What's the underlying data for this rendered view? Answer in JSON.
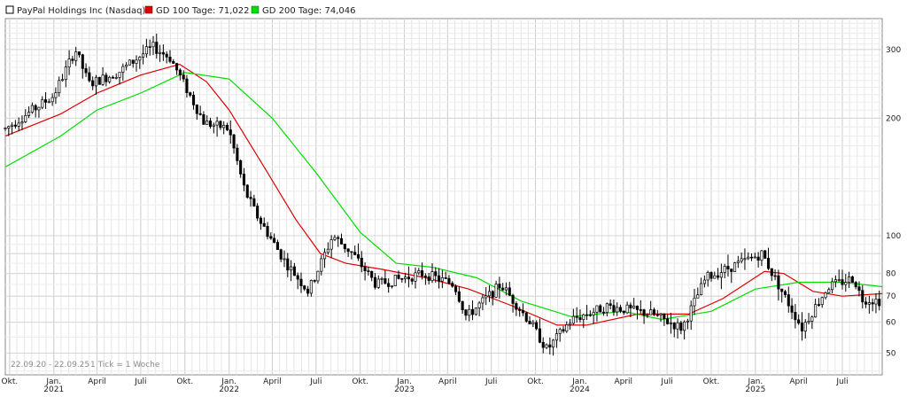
{
  "legend": [
    {
      "label": "PayPal Holdings Inc (Nasdaq)",
      "color": "#000000"
    },
    {
      "label": "GD 100 Tage: 71,022",
      "color": "#e00000"
    },
    {
      "label": "GD 200 Tage: 74,046",
      "color": "#00dd00"
    }
  ],
  "footer": {
    "range": "22.09.20 - 22.09.25",
    "tick_info": "1 Tick = 1 Woche"
  },
  "chart_data": {
    "type": "candlestick",
    "y_scale": "log",
    "ylim": [
      44,
      360
    ],
    "y_ticks": [
      50,
      60,
      70,
      80,
      90,
      100,
      200,
      300
    ],
    "y_tick_labels": [
      "50",
      "60",
      "70",
      "80",
      "",
      "100",
      "200",
      "300"
    ],
    "x_tick_labels": [
      {
        "date": "2020-10-01",
        "label": "Okt."
      },
      {
        "date": "2021-01-01",
        "label": "Jan.",
        "year": "2021"
      },
      {
        "date": "2021-04-01",
        "label": "April"
      },
      {
        "date": "2021-07-01",
        "label": "Juli"
      },
      {
        "date": "2021-10-01",
        "label": "Okt."
      },
      {
        "date": "2022-01-01",
        "label": "Jan.",
        "year": "2022"
      },
      {
        "date": "2022-04-01",
        "label": "April"
      },
      {
        "date": "2022-07-01",
        "label": "Juli"
      },
      {
        "date": "2022-10-01",
        "label": "Okt."
      },
      {
        "date": "2023-01-01",
        "label": "Jan.",
        "year": "2023"
      },
      {
        "date": "2023-04-01",
        "label": "April"
      },
      {
        "date": "2023-07-01",
        "label": "Juli"
      },
      {
        "date": "2023-10-01",
        "label": "Okt."
      },
      {
        "date": "2024-01-01",
        "label": "Jan.",
        "year": "2024"
      },
      {
        "date": "2024-04-01",
        "label": "April"
      },
      {
        "date": "2024-07-01",
        "label": "Juli"
      },
      {
        "date": "2024-10-01",
        "label": "Okt."
      },
      {
        "date": "2025-01-01",
        "label": "Jan.",
        "year": "2025"
      },
      {
        "date": "2025-04-01",
        "label": "April"
      },
      {
        "date": "2025-07-01",
        "label": "Juli"
      }
    ],
    "x_range": [
      "2020-09-22",
      "2025-09-22"
    ],
    "candles_weekly_close": [
      {
        "date": "2020-09-22",
        "close": 188
      },
      {
        "date": "2020-12-31",
        "close": 228
      },
      {
        "date": "2021-02-15",
        "close": 300
      },
      {
        "date": "2021-03-15",
        "close": 245
      },
      {
        "date": "2021-05-15",
        "close": 262
      },
      {
        "date": "2021-07-26",
        "close": 305
      },
      {
        "date": "2021-09-01",
        "close": 285
      },
      {
        "date": "2021-11-10",
        "close": 195
      },
      {
        "date": "2021-12-31",
        "close": 188
      },
      {
        "date": "2022-02-03",
        "close": 130
      },
      {
        "date": "2022-03-01",
        "close": 112
      },
      {
        "date": "2022-04-27",
        "close": 86
      },
      {
        "date": "2022-06-15",
        "close": 72
      },
      {
        "date": "2022-08-05",
        "close": 100
      },
      {
        "date": "2022-09-15",
        "close": 90
      },
      {
        "date": "2022-11-03",
        "close": 75
      },
      {
        "date": "2023-02-10",
        "close": 80
      },
      {
        "date": "2023-04-15",
        "close": 75
      },
      {
        "date": "2023-05-10",
        "close": 62
      },
      {
        "date": "2023-07-21",
        "close": 75
      },
      {
        "date": "2023-09-20",
        "close": 60
      },
      {
        "date": "2023-10-25",
        "close": 51
      },
      {
        "date": "2023-12-15",
        "close": 61
      },
      {
        "date": "2024-02-28",
        "close": 66
      },
      {
        "date": "2024-05-30",
        "close": 63
      },
      {
        "date": "2024-08-01",
        "close": 58
      },
      {
        "date": "2024-09-20",
        "close": 78
      },
      {
        "date": "2025-01-15",
        "close": 90
      },
      {
        "date": "2025-02-05",
        "close": 80
      },
      {
        "date": "2025-04-08",
        "close": 58
      },
      {
        "date": "2025-06-01",
        "close": 74
      },
      {
        "date": "2025-07-25",
        "close": 78
      },
      {
        "date": "2025-08-10",
        "close": 69
      },
      {
        "date": "2025-09-22",
        "close": 68
      }
    ],
    "series": [
      {
        "name": "GD 100 Tage: 71,022",
        "color": "#e00000",
        "points": [
          {
            "date": "2020-09-22",
            "value": 180
          },
          {
            "date": "2021-01-15",
            "value": 205
          },
          {
            "date": "2021-04-01",
            "value": 232
          },
          {
            "date": "2021-07-01",
            "value": 258
          },
          {
            "date": "2021-09-20",
            "value": 275
          },
          {
            "date": "2021-11-15",
            "value": 248
          },
          {
            "date": "2022-01-01",
            "value": 210
          },
          {
            "date": "2022-03-15",
            "value": 150
          },
          {
            "date": "2022-05-20",
            "value": 110
          },
          {
            "date": "2022-07-10",
            "value": 90
          },
          {
            "date": "2022-09-01",
            "value": 85
          },
          {
            "date": "2022-11-15",
            "value": 82
          },
          {
            "date": "2023-02-15",
            "value": 78
          },
          {
            "date": "2023-05-15",
            "value": 73
          },
          {
            "date": "2023-08-15",
            "value": 66
          },
          {
            "date": "2023-11-15",
            "value": 59
          },
          {
            "date": "2024-01-15",
            "value": 59
          },
          {
            "date": "2024-05-01",
            "value": 63
          },
          {
            "date": "2024-08-15",
            "value": 63
          },
          {
            "date": "2024-10-25",
            "value": 69
          },
          {
            "date": "2025-01-20",
            "value": 81
          },
          {
            "date": "2025-03-01",
            "value": 80
          },
          {
            "date": "2025-05-01",
            "value": 72
          },
          {
            "date": "2025-07-01",
            "value": 70
          },
          {
            "date": "2025-09-22",
            "value": 71.022
          }
        ]
      },
      {
        "name": "GD 200 Tage: 74,046",
        "color": "#00dd00",
        "points": [
          {
            "date": "2020-09-22",
            "value": 150
          },
          {
            "date": "2021-01-15",
            "value": 180
          },
          {
            "date": "2021-04-01",
            "value": 210
          },
          {
            "date": "2021-07-01",
            "value": 232
          },
          {
            "date": "2021-10-01",
            "value": 262
          },
          {
            "date": "2022-01-01",
            "value": 252
          },
          {
            "date": "2022-04-01",
            "value": 200
          },
          {
            "date": "2022-07-01",
            "value": 145
          },
          {
            "date": "2022-10-01",
            "value": 102
          },
          {
            "date": "2022-12-15",
            "value": 85
          },
          {
            "date": "2023-03-01",
            "value": 83
          },
          {
            "date": "2023-06-01",
            "value": 78
          },
          {
            "date": "2023-09-01",
            "value": 68
          },
          {
            "date": "2023-12-15",
            "value": 62
          },
          {
            "date": "2024-04-01",
            "value": 64
          },
          {
            "date": "2024-06-20",
            "value": 61
          },
          {
            "date": "2024-10-01",
            "value": 64
          },
          {
            "date": "2025-01-01",
            "value": 73
          },
          {
            "date": "2025-04-01",
            "value": 76
          },
          {
            "date": "2025-07-01",
            "value": 76
          },
          {
            "date": "2025-09-22",
            "value": 74.046
          }
        ]
      }
    ]
  }
}
